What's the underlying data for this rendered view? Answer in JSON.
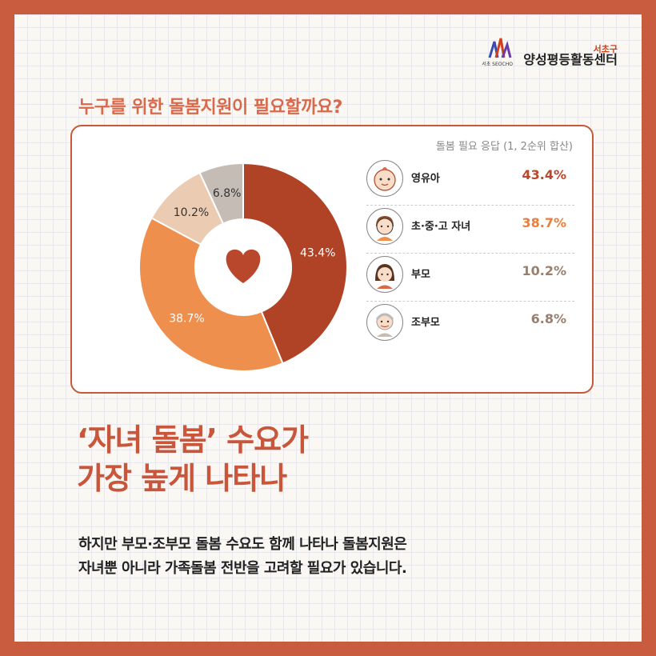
{
  "logo": {
    "text": "양성평등활동센터",
    "gu": "서초구",
    "sub": "서초 SEOCHO"
  },
  "question_title": "누구를 위한 돌봄지원이 필요할까요?",
  "card_note": "돌봄 필요 응답 (1, 2순위 합산)",
  "chart_data": {
    "type": "pie",
    "donut": true,
    "categories": [
      "영유아",
      "초·중·고 자녀",
      "부모",
      "조부모"
    ],
    "values": [
      43.4,
      38.7,
      10.2,
      6.8
    ],
    "labels": [
      "43.4%",
      "38.7%",
      "10.2%",
      "6.8%"
    ],
    "colors": [
      "#b04326",
      "#ee8f4e",
      "#ebcbb2",
      "#c5bcb6"
    ],
    "label_colors": [
      "#ffffff",
      "#ffffff",
      "#333333",
      "#333333"
    ],
    "legend_value_colors": [
      "#b9472c",
      "#ea7e3c",
      "#9a7f6c",
      "#9a7f6c"
    ],
    "center_icon": "heart-icon",
    "legend_placement": "right"
  },
  "legend_icons": [
    "baby-face-icon",
    "student-face-icon",
    "parent-face-icon",
    "grandparent-face-icon"
  ],
  "headline": {
    "line1": "‘자녀 돌봄’ 수요가",
    "line2": "가장 높게 나타나"
  },
  "body": {
    "line1": "하지만 부모·조부모 돌봄 수요도 함께 나타나 돌봄지원은",
    "line2": "자녀뿐 아니라 가족돌봄 전반을 고려할 필요가 있습니다."
  }
}
